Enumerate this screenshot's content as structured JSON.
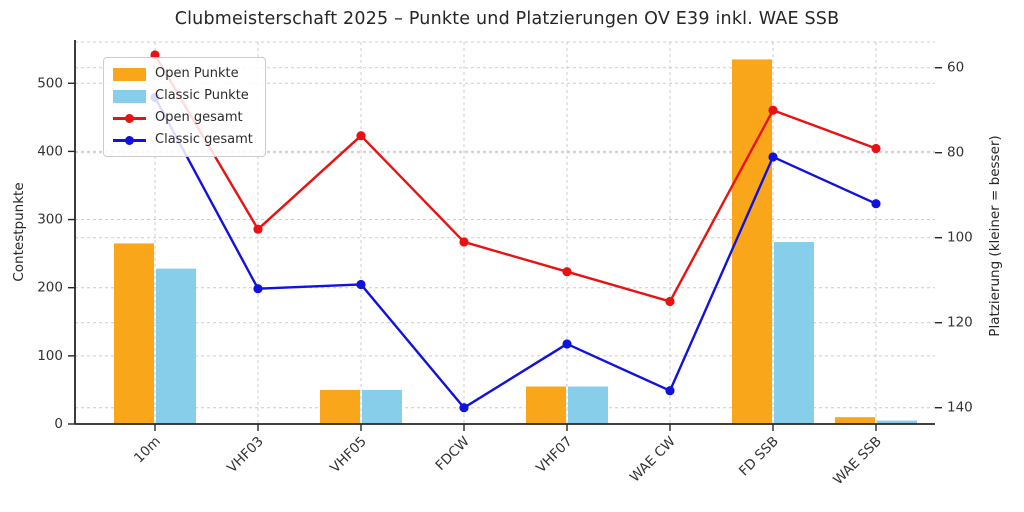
{
  "title": "Clubmeisterschaft 2025 – Punkte und Platzierungen OV E39 inkl. WAE SSB",
  "chart_data": {
    "type": "bar+line",
    "categories": [
      "10m",
      "VHF03",
      "VHF05",
      "FDCW",
      "VHF07",
      "WAE CW",
      "FD SSB",
      "WAE SSB"
    ],
    "bar_series": [
      {
        "name": "Open Punkte",
        "color": "#FAA61A",
        "axis": "left",
        "values": [
          265,
          0,
          50,
          0,
          55,
          0,
          535,
          10
        ]
      },
      {
        "name": "Classic Punkte",
        "color": "#87CEEB",
        "axis": "left",
        "values": [
          228,
          0,
          50,
          0,
          55,
          0,
          267,
          5
        ]
      }
    ],
    "line_series": [
      {
        "name": "Open gesamt",
        "color": "#E81212",
        "axis": "right",
        "values": [
          57,
          98,
          76,
          101,
          108,
          115,
          70,
          79
        ]
      },
      {
        "name": "Classic gesamt",
        "color": "#1212DE",
        "axis": "right",
        "values": [
          67,
          112,
          111,
          140,
          125,
          136,
          81,
          92
        ]
      }
    ],
    "ylabel_left": "Contestpunkte",
    "ylabel_right": "Platzierung (kleiner = besser)",
    "yticks_left": [
      0,
      100,
      200,
      300,
      400,
      500
    ],
    "yticks_right": [
      60,
      80,
      100,
      120,
      140
    ],
    "ylim_left": [
      0,
      560
    ],
    "yaxis_right_inverted": true,
    "grid": true,
    "legend_position": "upper left"
  },
  "legend": {
    "items": [
      {
        "label": "Open Punkte"
      },
      {
        "label": "Classic Punkte"
      },
      {
        "label": "Open gesamt"
      },
      {
        "label": "Classic gesamt"
      }
    ]
  }
}
